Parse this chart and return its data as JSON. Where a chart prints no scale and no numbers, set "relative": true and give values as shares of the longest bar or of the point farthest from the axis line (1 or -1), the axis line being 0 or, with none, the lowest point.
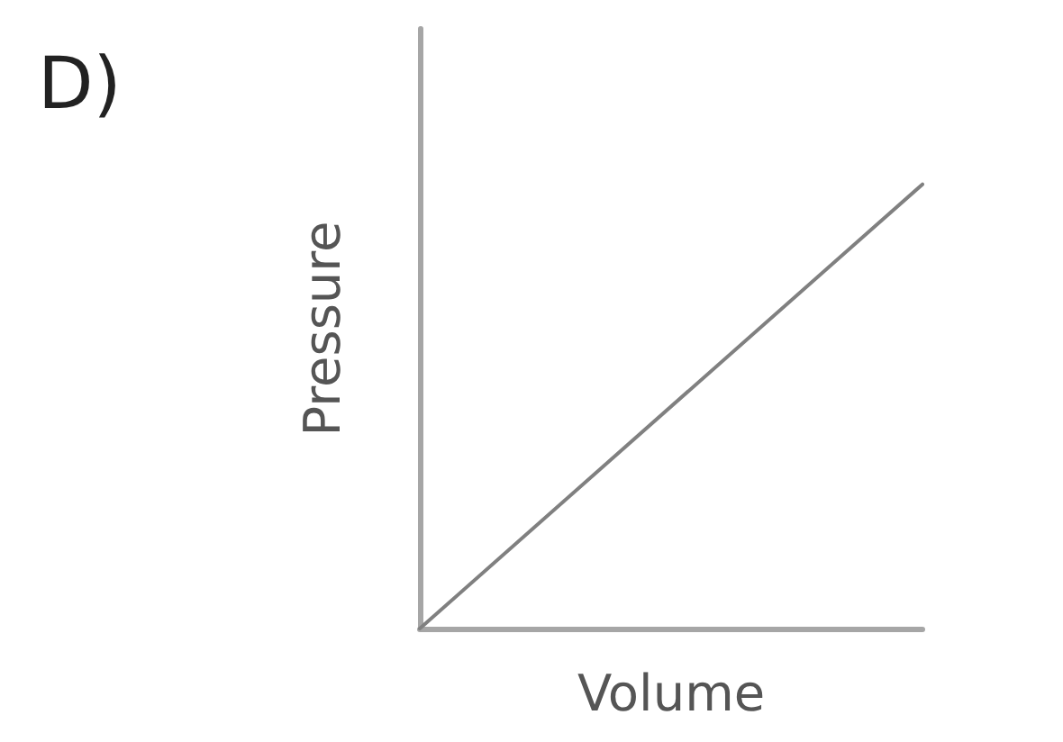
{
  "chart_data": {
    "type": "line",
    "title": "D)",
    "xlabel": "Volume",
    "ylabel": "Pressure",
    "categories": [
      null,
      null
    ],
    "values": [
      0,
      1
    ],
    "color": "#808080",
    "relative": true,
    "marker": "none",
    "line_style": "solid"
  }
}
